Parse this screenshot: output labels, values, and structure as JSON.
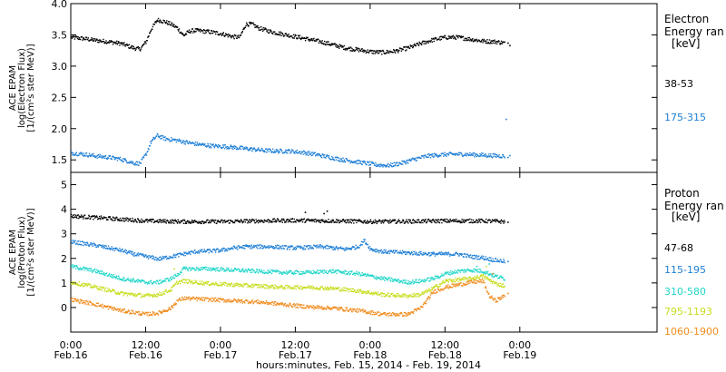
{
  "chart_data": {
    "type": "scatter",
    "x_unit": "hours since Feb.15 00:00",
    "xlim": [
      24,
      118
    ],
    "x_ticks": [
      {
        "x": 24,
        "time": "0:00",
        "date": "Feb.16"
      },
      {
        "x": 36,
        "time": "12:00",
        "date": "Feb.16"
      },
      {
        "x": 48,
        "time": "0:00",
        "date": "Feb.17"
      },
      {
        "x": 60,
        "time": "12:00",
        "date": "Feb.17"
      },
      {
        "x": 72,
        "time": "0:00",
        "date": "Feb.18"
      },
      {
        "x": 84,
        "time": "12:00",
        "date": "Feb.18"
      },
      {
        "x": 96,
        "time": "0:00",
        "date": "Feb.19"
      }
    ],
    "xlabel": "hours:minutes, Feb. 15, 2014 - Feb. 19, 2014",
    "panels": [
      {
        "id": "electron",
        "ylabel": [
          "ACE EPAM",
          "log(Electron Flux)",
          "[1/(cm²s ster MeV)]"
        ],
        "ylim": [
          1.3,
          4.0
        ],
        "yticks": [
          1.5,
          2.0,
          2.5,
          3.0,
          3.5,
          4.0
        ],
        "ytick_labels": [
          "1.5",
          "2.0",
          "2.5",
          "3.0",
          "3.5",
          "4.0"
        ],
        "legend_title": [
          "Electron",
          "Energy ran"
        ],
        "legend_unit": "[keV]",
        "series": [
          {
            "name": "38-53",
            "color": "#000000",
            "points": [
              [
                24,
                3.47
              ],
              [
                26,
                3.45
              ],
              [
                28,
                3.42
              ],
              [
                30,
                3.4
              ],
              [
                32,
                3.37
              ],
              [
                34,
                3.3
              ],
              [
                35,
                3.28
              ],
              [
                36,
                3.4
              ],
              [
                36.8,
                3.6
              ],
              [
                37.8,
                3.75
              ],
              [
                39,
                3.72
              ],
              [
                40,
                3.68
              ],
              [
                41,
                3.62
              ],
              [
                42,
                3.5
              ],
              [
                43,
                3.57
              ],
              [
                44,
                3.58
              ],
              [
                46,
                3.56
              ],
              [
                48,
                3.53
              ],
              [
                50,
                3.48
              ],
              [
                51,
                3.47
              ],
              [
                52,
                3.68
              ],
              [
                53,
                3.68
              ],
              [
                54,
                3.62
              ],
              [
                56,
                3.56
              ],
              [
                58,
                3.52
              ],
              [
                60,
                3.48
              ],
              [
                62,
                3.44
              ],
              [
                64,
                3.4
              ],
              [
                66,
                3.35
              ],
              [
                68,
                3.3
              ],
              [
                70,
                3.27
              ],
              [
                72,
                3.24
              ],
              [
                74,
                3.23
              ],
              [
                76,
                3.25
              ],
              [
                78,
                3.3
              ],
              [
                80,
                3.37
              ],
              [
                82,
                3.43
              ],
              [
                84,
                3.47
              ],
              [
                86,
                3.47
              ],
              [
                88,
                3.44
              ],
              [
                90,
                3.41
              ],
              [
                92,
                3.4
              ],
              [
                93.5,
                3.38
              ]
            ],
            "outliers": [
              [
                94,
                3.38
              ],
              [
                94.3,
                3.34
              ]
            ]
          },
          {
            "name": "175-315",
            "color": "#1e7fd6",
            "points": [
              [
                24,
                1.62
              ],
              [
                26,
                1.6
              ],
              [
                28,
                1.57
              ],
              [
                30,
                1.55
              ],
              [
                32,
                1.52
              ],
              [
                34,
                1.46
              ],
              [
                35,
                1.45
              ],
              [
                36,
                1.6
              ],
              [
                36.8,
                1.8
              ],
              [
                37.8,
                1.9
              ],
              [
                39,
                1.85
              ],
              [
                41,
                1.82
              ],
              [
                43,
                1.78
              ],
              [
                45,
                1.75
              ],
              [
                47,
                1.73
              ],
              [
                49,
                1.72
              ],
              [
                51,
                1.7
              ],
              [
                53,
                1.68
              ],
              [
                55,
                1.66
              ],
              [
                57,
                1.65
              ],
              [
                59,
                1.65
              ],
              [
                61,
                1.63
              ],
              [
                63,
                1.6
              ],
              [
                65,
                1.56
              ],
              [
                67,
                1.52
              ],
              [
                69,
                1.49
              ],
              [
                71,
                1.46
              ],
              [
                73,
                1.43
              ],
              [
                75,
                1.42
              ],
              [
                77,
                1.46
              ],
              [
                79,
                1.52
              ],
              [
                81,
                1.57
              ],
              [
                83,
                1.59
              ],
              [
                85,
                1.6
              ],
              [
                87,
                1.6
              ],
              [
                89,
                1.59
              ],
              [
                91,
                1.58
              ],
              [
                93.5,
                1.57
              ]
            ],
            "outliers": [
              [
                94,
                1.55
              ],
              [
                94.3,
                1.58
              ],
              [
                93.7,
                2.16
              ]
            ]
          }
        ]
      },
      {
        "id": "proton",
        "ylabel": [
          "ACE EPAM",
          "log(Proton Flux)",
          "[1/(cm²s ster MeV)]"
        ],
        "ylim": [
          -1,
          5.5
        ],
        "yticks": [
          0,
          1,
          2,
          3,
          4,
          5
        ],
        "ytick_labels": [
          "0",
          "1",
          "2",
          "3",
          "4",
          "5"
        ],
        "legend_title": [
          "Proton",
          "Energy ran"
        ],
        "legend_unit": "[keV]",
        "series": [
          {
            "name": "47-68",
            "color": "#000000",
            "points": [
              [
                24,
                3.75
              ],
              [
                30,
                3.65
              ],
              [
                36,
                3.55
              ],
              [
                42,
                3.52
              ],
              [
                48,
                3.52
              ],
              [
                54,
                3.55
              ],
              [
                60,
                3.57
              ],
              [
                66,
                3.55
              ],
              [
                72,
                3.52
              ],
              [
                78,
                3.53
              ],
              [
                84,
                3.55
              ],
              [
                90,
                3.55
              ],
              [
                93.5,
                3.52
              ]
            ],
            "outliers": [
              [
                61.5,
                3.9
              ],
              [
                64.5,
                3.85
              ],
              [
                65,
                3.95
              ],
              [
                94,
                3.5
              ]
            ]
          },
          {
            "name": "115-195",
            "color": "#1e7fd6",
            "points": [
              [
                24,
                2.7
              ],
              [
                28,
                2.55
              ],
              [
                32,
                2.35
              ],
              [
                34,
                2.2
              ],
              [
                36,
                2.1
              ],
              [
                38,
                2.0
              ],
              [
                40,
                2.1
              ],
              [
                42,
                2.2
              ],
              [
                44,
                2.3
              ],
              [
                48,
                2.35
              ],
              [
                50,
                2.45
              ],
              [
                52,
                2.5
              ],
              [
                56,
                2.5
              ],
              [
                60,
                2.45
              ],
              [
                64,
                2.5
              ],
              [
                68,
                2.4
              ],
              [
                70,
                2.5
              ],
              [
                71,
                2.75
              ],
              [
                72,
                2.4
              ],
              [
                74,
                2.3
              ],
              [
                78,
                2.25
              ],
              [
                82,
                2.2
              ],
              [
                86,
                2.2
              ],
              [
                88,
                2.1
              ],
              [
                90,
                2.05
              ],
              [
                92,
                1.95
              ],
              [
                93.5,
                1.9
              ]
            ],
            "outliers": [
              [
                94,
                1.9
              ]
            ]
          },
          {
            "name": "310-580",
            "color": "#20d6c8",
            "points": [
              [
                24,
                1.7
              ],
              [
                28,
                1.5
              ],
              [
                32,
                1.2
              ],
              [
                36,
                1.05
              ],
              [
                38,
                1.05
              ],
              [
                40,
                1.2
              ],
              [
                41,
                1.35
              ],
              [
                42,
                1.6
              ],
              [
                46,
                1.6
              ],
              [
                50,
                1.55
              ],
              [
                54,
                1.5
              ],
              [
                58,
                1.45
              ],
              [
                62,
                1.45
              ],
              [
                66,
                1.5
              ],
              [
                68,
                1.45
              ],
              [
                70,
                1.4
              ],
              [
                72,
                1.3
              ],
              [
                74,
                1.2
              ],
              [
                78,
                1.05
              ],
              [
                80,
                1.1
              ],
              [
                82,
                1.2
              ],
              [
                84,
                1.4
              ],
              [
                86,
                1.5
              ],
              [
                88,
                1.55
              ],
              [
                90,
                1.5
              ],
              [
                92,
                1.3
              ],
              [
                93.5,
                1.2
              ]
            ],
            "outliers": [
              [
                91,
                1.8
              ],
              [
                89,
                1.7
              ]
            ]
          },
          {
            "name": "795-1193",
            "color": "#c8dd1e",
            "points": [
              [
                24,
                1.05
              ],
              [
                28,
                0.85
              ],
              [
                32,
                0.6
              ],
              [
                36,
                0.5
              ],
              [
                38,
                0.55
              ],
              [
                40,
                0.75
              ],
              [
                41,
                1.05
              ],
              [
                42,
                1.1
              ],
              [
                46,
                1.0
              ],
              [
                50,
                0.95
              ],
              [
                54,
                0.9
              ],
              [
                58,
                0.85
              ],
              [
                62,
                0.85
              ],
              [
                66,
                0.8
              ],
              [
                70,
                0.7
              ],
              [
                74,
                0.55
              ],
              [
                78,
                0.5
              ],
              [
                80,
                0.55
              ],
              [
                82,
                0.8
              ],
              [
                84,
                1.1
              ],
              [
                86,
                1.15
              ],
              [
                88,
                1.2
              ],
              [
                90,
                1.3
              ],
              [
                92,
                1.0
              ],
              [
                93.5,
                0.9
              ]
            ],
            "outliers": [
              [
                40.5,
                1.6
              ],
              [
                90.5,
                1.7
              ]
            ]
          },
          {
            "name": "1060-1900",
            "color": "#f08c1e",
            "points": [
              [
                24,
                0.35
              ],
              [
                28,
                0.15
              ],
              [
                32,
                -0.1
              ],
              [
                36,
                -0.25
              ],
              [
                38,
                -0.2
              ],
              [
                40,
                0.0
              ],
              [
                41,
                0.3
              ],
              [
                42,
                0.4
              ],
              [
                46,
                0.35
              ],
              [
                50,
                0.3
              ],
              [
                54,
                0.25
              ],
              [
                58,
                0.15
              ],
              [
                62,
                0.05
              ],
              [
                66,
                0.0
              ],
              [
                70,
                -0.1
              ],
              [
                74,
                -0.25
              ],
              [
                78,
                -0.25
              ],
              [
                80,
                0.0
              ],
              [
                81,
                0.3
              ],
              [
                82,
                0.65
              ],
              [
                84,
                0.85
              ],
              [
                86,
                0.95
              ],
              [
                88,
                1.05
              ],
              [
                90,
                1.1
              ],
              [
                91,
                0.5
              ],
              [
                92,
                0.3
              ],
              [
                93.5,
                0.5
              ]
            ],
            "outliers": [
              [
                91.5,
                1.4
              ],
              [
                94,
                0.6
              ]
            ]
          }
        ]
      }
    ]
  }
}
